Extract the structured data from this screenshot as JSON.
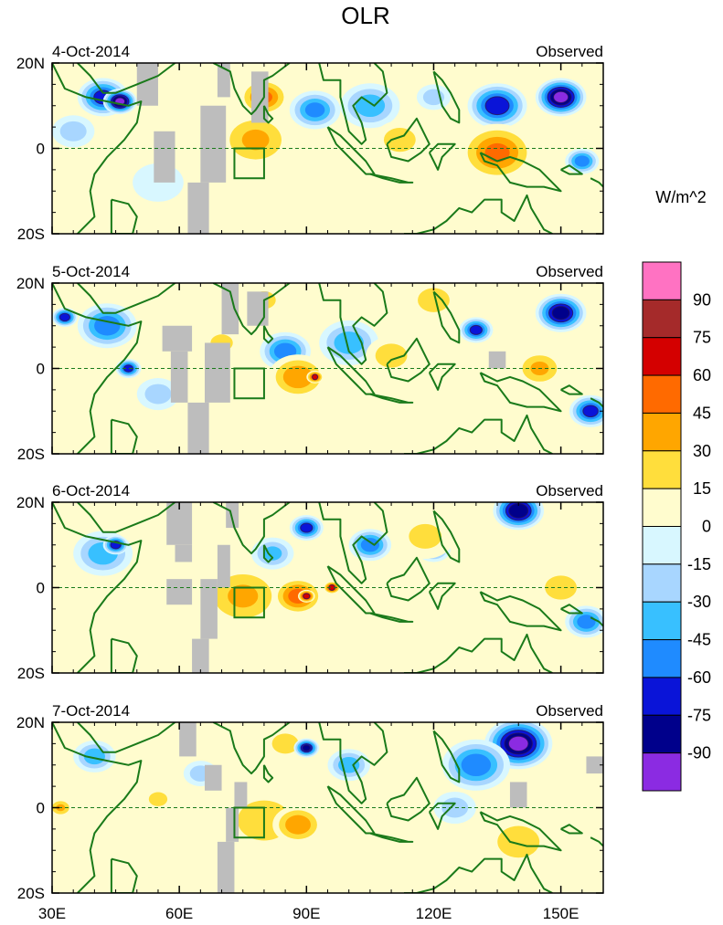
{
  "chart_data": {
    "type": "heatmap",
    "title": "OLR",
    "units_label": "W/m^2",
    "x_tick_labels": [
      "30E",
      "60E",
      "90E",
      "120E",
      "150E"
    ],
    "x_tick_values": [
      30,
      60,
      90,
      120,
      150
    ],
    "xlim": [
      30,
      160
    ],
    "y_tick_labels": [
      "20N",
      "0",
      "20S"
    ],
    "y_tick_values": [
      20,
      0,
      -20
    ],
    "ylim": [
      -20,
      20
    ],
    "box_region": {
      "lon": [
        73,
        80
      ],
      "lat": [
        -7,
        0
      ]
    },
    "colorbar": {
      "labels": [
        "90",
        "75",
        "60",
        "45",
        "30",
        "15",
        "0",
        "-15",
        "-30",
        "-45",
        "-60",
        "-75",
        "-90"
      ],
      "colors": [
        "#ff72c2",
        "#a52a2a",
        "#d40000",
        "#ff6a00",
        "#ffa600",
        "#ffde3c",
        "#fffcce",
        "#d8f7ff",
        "#a8d6ff",
        "#38c0ff",
        "#1f8bff",
        "#0a14d8",
        "#00008b",
        "#8b2be2"
      ]
    },
    "panels": [
      {
        "date": "4-Oct-2014",
        "label": "Observed",
        "anomalies": [
          {
            "lon": 42,
            "lat": 12,
            "r": 6,
            "v": -70
          },
          {
            "lon": 46,
            "lat": 11,
            "r": 4,
            "v": -95
          },
          {
            "lon": 35,
            "lat": 4,
            "r": 5,
            "v": -30
          },
          {
            "lon": 80,
            "lat": 12,
            "r": 6,
            "v": 50
          },
          {
            "lon": 78,
            "lat": 2,
            "r": 9,
            "v": 35
          },
          {
            "lon": 92,
            "lat": 9,
            "r": 6,
            "v": -55
          },
          {
            "lon": 105,
            "lat": 10,
            "r": 7,
            "v": -45
          },
          {
            "lon": 112,
            "lat": 2,
            "r": 6,
            "v": 30
          },
          {
            "lon": 135,
            "lat": 10,
            "r": 7,
            "v": -75
          },
          {
            "lon": 150,
            "lat": 12,
            "r": 6,
            "v": -95
          },
          {
            "lon": 135,
            "lat": -1,
            "r": 9,
            "v": 50
          },
          {
            "lon": 90,
            "lat": -8,
            "r": 8,
            "v": 15
          },
          {
            "lon": 110,
            "lat": -7,
            "r": 8,
            "v": 15
          },
          {
            "lon": 155,
            "lat": -3,
            "r": 4,
            "v": -60
          },
          {
            "lon": 55,
            "lat": -8,
            "r": 6,
            "v": -15
          },
          {
            "lon": 120,
            "lat": 12,
            "r": 4,
            "v": -30
          }
        ],
        "missing": [
          {
            "lon": [
              50,
              55
            ],
            "lat": [
              10,
              20
            ]
          },
          {
            "lon": [
              54,
              59
            ],
            "lat": [
              -8,
              4
            ]
          },
          {
            "lon": [
              62,
              67
            ],
            "lat": [
              -20,
              -8
            ]
          },
          {
            "lon": [
              65,
              71
            ],
            "lat": [
              -8,
              10
            ]
          },
          {
            "lon": [
              69,
              72
            ],
            "lat": [
              12,
              20
            ]
          },
          {
            "lon": [
              77,
              81
            ],
            "lat": [
              6,
              18
            ]
          }
        ]
      },
      {
        "date": "5-Oct-2014",
        "label": "Observed",
        "anomalies": [
          {
            "lon": 43,
            "lat": 10,
            "r": 7,
            "v": -60
          },
          {
            "lon": 33,
            "lat": 12,
            "r": 3,
            "v": -75
          },
          {
            "lon": 48,
            "lat": 0,
            "r": 3,
            "v": -70
          },
          {
            "lon": 85,
            "lat": 4,
            "r": 6,
            "v": -60
          },
          {
            "lon": 88,
            "lat": -2,
            "r": 7,
            "v": 45
          },
          {
            "lon": 92,
            "lat": -2,
            "r": 2,
            "v": 65
          },
          {
            "lon": 100,
            "lat": 6,
            "r": 7,
            "v": -45
          },
          {
            "lon": 110,
            "lat": 3,
            "r": 6,
            "v": 30
          },
          {
            "lon": 130,
            "lat": 9,
            "r": 4,
            "v": -70
          },
          {
            "lon": 145,
            "lat": 0,
            "r": 6,
            "v": 35
          },
          {
            "lon": 150,
            "lat": 13,
            "r": 6,
            "v": -85
          },
          {
            "lon": 157,
            "lat": -10,
            "r": 5,
            "v": -70
          },
          {
            "lon": 80,
            "lat": 16,
            "r": 5,
            "v": 25
          },
          {
            "lon": 120,
            "lat": 16,
            "r": 6,
            "v": 30
          },
          {
            "lon": 70,
            "lat": 6,
            "r": 6,
            "v": 20
          },
          {
            "lon": 55,
            "lat": -6,
            "r": 5,
            "v": -30
          }
        ],
        "missing": [
          {
            "lon": [
              56,
              63
            ],
            "lat": [
              4,
              10
            ]
          },
          {
            "lon": [
              58,
              62
            ],
            "lat": [
              -8,
              4
            ]
          },
          {
            "lon": [
              62,
              67
            ],
            "lat": [
              -20,
              -8
            ]
          },
          {
            "lon": [
              66,
              72
            ],
            "lat": [
              -8,
              6
            ]
          },
          {
            "lon": [
              70,
              74
            ],
            "lat": [
              8,
              20
            ]
          },
          {
            "lon": [
              76,
              81
            ],
            "lat": [
              10,
              18
            ]
          },
          {
            "lon": [
              133,
              137
            ],
            "lat": [
              0,
              4
            ]
          }
        ]
      },
      {
        "date": "6-Oct-2014",
        "label": "Observed",
        "anomalies": [
          {
            "lon": 42,
            "lat": 8,
            "r": 7,
            "v": -45
          },
          {
            "lon": 45,
            "lat": 10,
            "r": 3,
            "v": -75
          },
          {
            "lon": 75,
            "lat": -2,
            "r": 10,
            "v": 35
          },
          {
            "lon": 88,
            "lat": -2,
            "r": 6,
            "v": 55
          },
          {
            "lon": 90,
            "lat": -2,
            "r": 2,
            "v": 75
          },
          {
            "lon": 96,
            "lat": 0,
            "r": 2,
            "v": 70
          },
          {
            "lon": 82,
            "lat": 8,
            "r": 5,
            "v": -40
          },
          {
            "lon": 90,
            "lat": 14,
            "r": 4,
            "v": -70
          },
          {
            "lon": 105,
            "lat": 10,
            "r": 5,
            "v": -60
          },
          {
            "lon": 120,
            "lat": 9,
            "r": 4,
            "v": -50
          },
          {
            "lon": 140,
            "lat": 18,
            "r": 6,
            "v": -90
          },
          {
            "lon": 150,
            "lat": 0,
            "r": 6,
            "v": 30
          },
          {
            "lon": 156,
            "lat": -8,
            "r": 5,
            "v": -60
          },
          {
            "lon": 118,
            "lat": 12,
            "r": 7,
            "v": 25
          },
          {
            "lon": 110,
            "lat": -10,
            "r": 7,
            "v": 15
          },
          {
            "lon": 80,
            "lat": -14,
            "r": 8,
            "v": 15
          }
        ],
        "missing": [
          {
            "lon": [
              57,
              63
            ],
            "lat": [
              10,
              20
            ]
          },
          {
            "lon": [
              59,
              63
            ],
            "lat": [
              6,
              10
            ]
          },
          {
            "lon": [
              57,
              63
            ],
            "lat": [
              -4,
              2
            ]
          },
          {
            "lon": [
              63,
              67
            ],
            "lat": [
              -20,
              -12
            ]
          },
          {
            "lon": [
              65,
              69
            ],
            "lat": [
              -12,
              2
            ]
          },
          {
            "lon": [
              69,
              72
            ],
            "lat": [
              0,
              10
            ]
          },
          {
            "lon": [
              71,
              74
            ],
            "lat": [
              14,
              20
            ]
          }
        ]
      },
      {
        "date": "7-Oct-2014",
        "label": "Observed",
        "anomalies": [
          {
            "lon": 40,
            "lat": 12,
            "r": 5,
            "v": -45
          },
          {
            "lon": 32,
            "lat": 0,
            "r": 3,
            "v": 35
          },
          {
            "lon": 80,
            "lat": -3,
            "r": 10,
            "v": 30
          },
          {
            "lon": 88,
            "lat": -4,
            "r": 6,
            "v": 45
          },
          {
            "lon": 85,
            "lat": 15,
            "r": 5,
            "v": 30
          },
          {
            "lon": 90,
            "lat": 14,
            "r": 3,
            "v": -80
          },
          {
            "lon": 100,
            "lat": 10,
            "r": 5,
            "v": -45
          },
          {
            "lon": 140,
            "lat": 15,
            "r": 8,
            "v": -95
          },
          {
            "lon": 130,
            "lat": 10,
            "r": 8,
            "v": -60
          },
          {
            "lon": 125,
            "lat": 0,
            "r": 5,
            "v": -30
          },
          {
            "lon": 140,
            "lat": -8,
            "r": 9,
            "v": 25
          },
          {
            "lon": 65,
            "lat": 8,
            "r": 4,
            "v": -30
          },
          {
            "lon": 55,
            "lat": 2,
            "r": 5,
            "v": 20
          }
        ],
        "missing": [
          {
            "lon": [
              60,
              64
            ],
            "lat": [
              12,
              20
            ]
          },
          {
            "lon": [
              66,
              70
            ],
            "lat": [
              4,
              10
            ]
          },
          {
            "lon": [
              69,
              73
            ],
            "lat": [
              -20,
              -8
            ]
          },
          {
            "lon": [
              71,
              74
            ],
            "lat": [
              -8,
              0
            ]
          },
          {
            "lon": [
              73,
              76
            ],
            "lat": [
              0,
              6
            ]
          },
          {
            "lon": [
              138,
              142
            ],
            "lat": [
              0,
              6
            ]
          },
          {
            "lon": [
              156,
              160
            ],
            "lat": [
              8,
              12
            ]
          }
        ]
      }
    ]
  }
}
